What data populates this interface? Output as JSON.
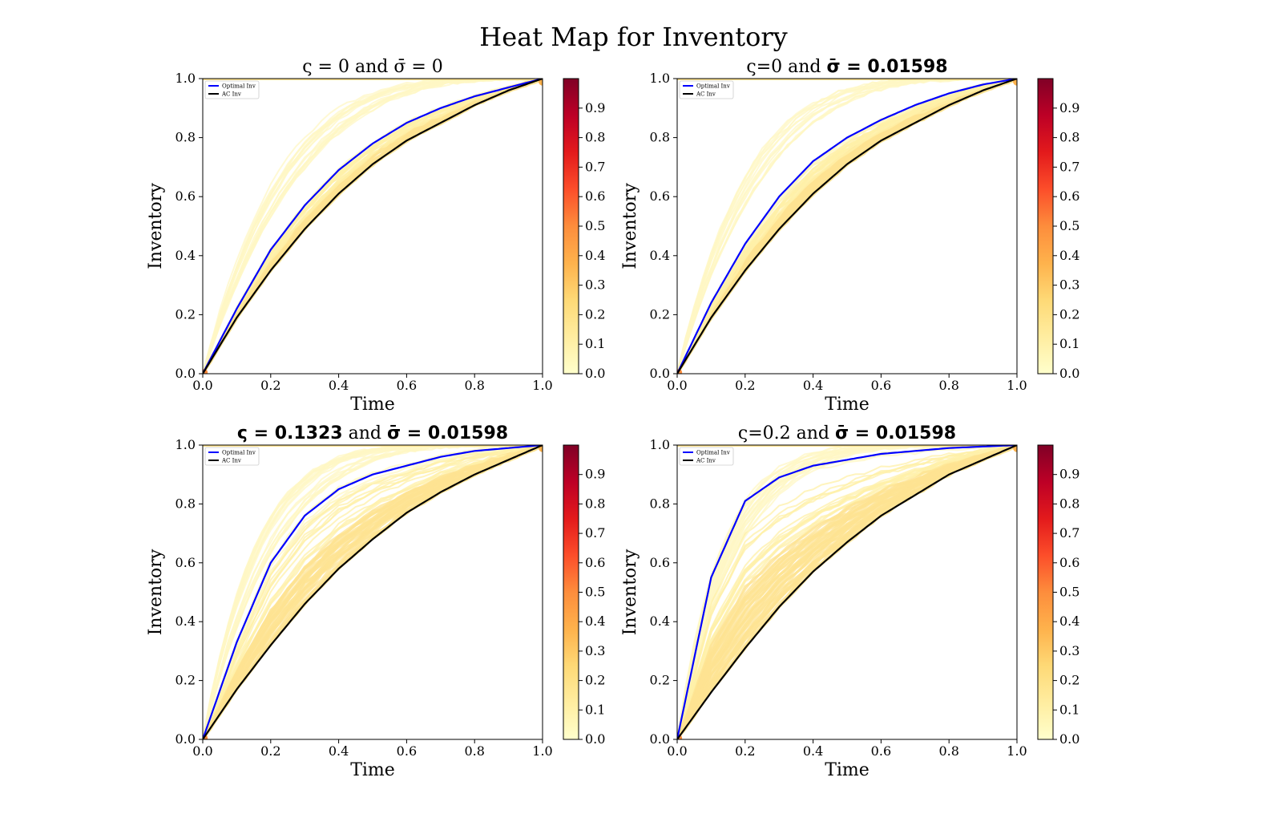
{
  "figure": {
    "title": "Heat Map for Inventory"
  },
  "colors": {
    "optimal": "#0000ff",
    "ac": "#000000",
    "colormap": "YlOrRd"
  },
  "chart_data": [
    {
      "type": "heatmap",
      "title_parts": [
        {
          "text": "ς",
          "bold": false
        },
        {
          "text": " = 0 and ",
          "bold": false
        },
        {
          "text": "σ̄",
          "bold": false
        },
        {
          "text": " = 0",
          "bold": false
        }
      ],
      "xlabel": "Time",
      "ylabel": "Inventory",
      "xlim": [
        0,
        1
      ],
      "ylim": [
        0,
        1
      ],
      "xticks": [
        "0.0",
        "0.2",
        "0.4",
        "0.6",
        "0.8",
        "1.0"
      ],
      "yticks": [
        "0.0",
        "0.2",
        "0.4",
        "0.6",
        "0.8",
        "1.0"
      ],
      "colorbar": {
        "ticks": [
          "0.0",
          "0.1",
          "0.2",
          "0.3",
          "0.4",
          "0.5",
          "0.6",
          "0.7",
          "0.8",
          "0.9"
        ],
        "range": [
          0,
          1
        ]
      },
      "legend": {
        "position": "top-left",
        "entries": [
          "Optimal Inv",
          "AC Inv"
        ]
      },
      "series": [
        {
          "name": "Optimal Inv",
          "x": [
            0,
            0.1,
            0.2,
            0.3,
            0.4,
            0.5,
            0.6,
            0.7,
            0.8,
            0.9,
            1.0
          ],
          "y": [
            0,
            0.22,
            0.42,
            0.57,
            0.69,
            0.78,
            0.85,
            0.9,
            0.94,
            0.97,
            1.0
          ]
        },
        {
          "name": "AC Inv",
          "x": [
            0,
            0.1,
            0.2,
            0.3,
            0.4,
            0.5,
            0.6,
            0.7,
            0.8,
            0.9,
            1.0
          ],
          "y": [
            0,
            0.19,
            0.35,
            0.49,
            0.61,
            0.71,
            0.79,
            0.85,
            0.91,
            0.96,
            1.0
          ]
        }
      ],
      "density_spread": 0.55
    },
    {
      "type": "heatmap",
      "title_parts": [
        {
          "text": "ς",
          "bold": false
        },
        {
          "text": "=0 and ",
          "bold": false
        },
        {
          "text": "σ̄ = 0.01598",
          "bold": true
        }
      ],
      "xlabel": "Time",
      "ylabel": "Inventory",
      "xlim": [
        0,
        1
      ],
      "ylim": [
        0,
        1
      ],
      "xticks": [
        "0.0",
        "0.2",
        "0.4",
        "0.6",
        "0.8",
        "1.0"
      ],
      "yticks": [
        "0.0",
        "0.2",
        "0.4",
        "0.6",
        "0.8",
        "1.0"
      ],
      "colorbar": {
        "ticks": [
          "0.0",
          "0.1",
          "0.2",
          "0.3",
          "0.4",
          "0.5",
          "0.6",
          "0.7",
          "0.8",
          "0.9"
        ],
        "range": [
          0,
          1
        ]
      },
      "legend": {
        "position": "top-left",
        "entries": [
          "Optimal Inv",
          "AC Inv"
        ]
      },
      "series": [
        {
          "name": "Optimal Inv",
          "x": [
            0,
            0.1,
            0.2,
            0.3,
            0.4,
            0.5,
            0.6,
            0.7,
            0.8,
            0.9,
            1.0
          ],
          "y": [
            0,
            0.24,
            0.44,
            0.6,
            0.72,
            0.8,
            0.86,
            0.91,
            0.95,
            0.98,
            1.0
          ]
        },
        {
          "name": "AC Inv",
          "x": [
            0,
            0.1,
            0.2,
            0.3,
            0.4,
            0.5,
            0.6,
            0.7,
            0.8,
            0.9,
            1.0
          ],
          "y": [
            0,
            0.19,
            0.35,
            0.49,
            0.61,
            0.71,
            0.79,
            0.85,
            0.91,
            0.96,
            1.0
          ]
        }
      ],
      "density_spread": 0.6
    },
    {
      "type": "heatmap",
      "title_parts": [
        {
          "text": "ς = 0.1323",
          "bold": true
        },
        {
          "text": " and ",
          "bold": false
        },
        {
          "text": "σ̄ = 0.01598",
          "bold": true
        }
      ],
      "xlabel": "Time",
      "ylabel": "Inventory",
      "xlim": [
        0,
        1
      ],
      "ylim": [
        0,
        1
      ],
      "xticks": [
        "0.0",
        "0.2",
        "0.4",
        "0.6",
        "0.8",
        "1.0"
      ],
      "yticks": [
        "0.0",
        "0.2",
        "0.4",
        "0.6",
        "0.8",
        "1.0"
      ],
      "colorbar": {
        "ticks": [
          "0.0",
          "0.1",
          "0.2",
          "0.3",
          "0.4",
          "0.5",
          "0.6",
          "0.7",
          "0.8",
          "0.9"
        ],
        "range": [
          0,
          1
        ]
      },
      "legend": {
        "position": "top-left",
        "entries": [
          "Optimal Inv",
          "AC Inv"
        ]
      },
      "series": [
        {
          "name": "Optimal Inv",
          "x": [
            0,
            0.1,
            0.2,
            0.3,
            0.4,
            0.5,
            0.6,
            0.7,
            0.8,
            0.9,
            1.0
          ],
          "y": [
            0,
            0.33,
            0.6,
            0.76,
            0.85,
            0.9,
            0.93,
            0.96,
            0.98,
            0.99,
            1.0
          ]
        },
        {
          "name": "AC Inv",
          "x": [
            0,
            0.1,
            0.2,
            0.3,
            0.4,
            0.5,
            0.6,
            0.7,
            0.8,
            0.9,
            1.0
          ],
          "y": [
            0,
            0.17,
            0.32,
            0.46,
            0.58,
            0.68,
            0.77,
            0.84,
            0.9,
            0.95,
            1.0
          ]
        }
      ],
      "density_spread": 0.8
    },
    {
      "type": "heatmap",
      "title_parts": [
        {
          "text": "ς",
          "bold": false
        },
        {
          "text": "=0.2 and ",
          "bold": false
        },
        {
          "text": "σ̄ = 0.01598",
          "bold": true
        }
      ],
      "xlabel": "Time",
      "ylabel": "Inventory",
      "xlim": [
        0,
        1
      ],
      "ylim": [
        0,
        1
      ],
      "xticks": [
        "0.0",
        "0.2",
        "0.4",
        "0.6",
        "0.8",
        "1.0"
      ],
      "yticks": [
        "0.0",
        "0.2",
        "0.4",
        "0.6",
        "0.8",
        "1.0"
      ],
      "colorbar": {
        "ticks": [
          "0.0",
          "0.1",
          "0.2",
          "0.3",
          "0.4",
          "0.5",
          "0.6",
          "0.7",
          "0.8",
          "0.9"
        ],
        "range": [
          0,
          1
        ]
      },
      "legend": {
        "position": "top-left",
        "entries": [
          "Optimal Inv",
          "AC Inv"
        ]
      },
      "series": [
        {
          "name": "Optimal Inv",
          "x": [
            0,
            0.1,
            0.2,
            0.3,
            0.4,
            0.5,
            0.6,
            0.7,
            0.8,
            0.9,
            1.0
          ],
          "y": [
            0,
            0.55,
            0.81,
            0.89,
            0.93,
            0.95,
            0.97,
            0.98,
            0.99,
            0.995,
            1.0
          ]
        },
        {
          "name": "AC Inv",
          "x": [
            0,
            0.1,
            0.2,
            0.3,
            0.4,
            0.5,
            0.6,
            0.7,
            0.8,
            0.9,
            1.0
          ],
          "y": [
            0,
            0.16,
            0.31,
            0.45,
            0.57,
            0.67,
            0.76,
            0.83,
            0.9,
            0.95,
            1.0
          ]
        }
      ],
      "density_spread": 0.95
    }
  ]
}
